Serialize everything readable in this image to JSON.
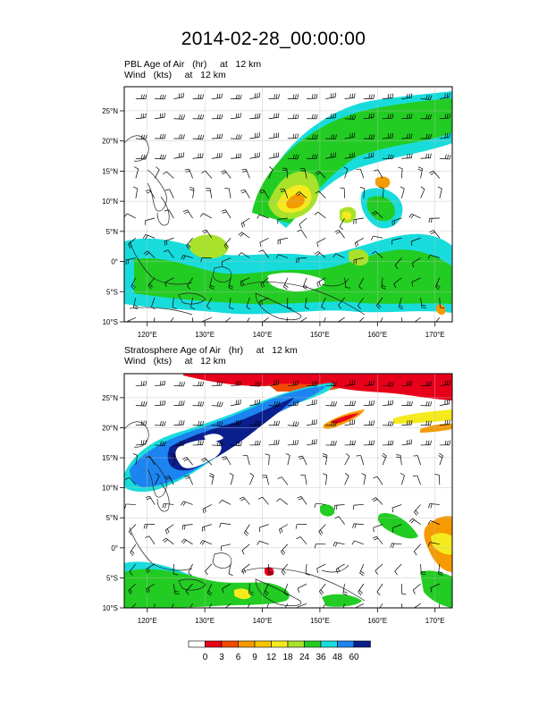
{
  "title": "2014-02-28_00:00:00",
  "panels": [
    {
      "id": "pbl",
      "title_lines": [
        "PBL Age of Air   (hr)     at   12 km",
        "Wind   (kts)     at   12 km"
      ],
      "field": "PBL Age of Air",
      "units": "hr",
      "level": "12 km"
    },
    {
      "id": "strat",
      "title_lines": [
        "Stratosphere Age of Air   (hr)     at   12 km",
        "Wind   (kts)     at   12 km"
      ],
      "field": "Stratosphere Age of Air",
      "units": "hr",
      "level": "12 km"
    }
  ],
  "axes": {
    "lon_ticks": [
      "120°E",
      "130°E",
      "140°E",
      "150°E",
      "160°E",
      "170°E"
    ],
    "lon_values": [
      120,
      130,
      140,
      150,
      160,
      170
    ],
    "lat_ticks": [
      "25°N",
      "20°N",
      "15°N",
      "10°N",
      "5°N",
      "0°",
      "5°S",
      "10°S"
    ],
    "lat_values": [
      25,
      20,
      15,
      10,
      5,
      0,
      -5,
      -10
    ],
    "lon_range": [
      116,
      173
    ],
    "lat_range": [
      -10,
      29
    ]
  },
  "colorbar": {
    "labels": [
      "0",
      "3",
      "6",
      "9",
      "12",
      "18",
      "24",
      "36",
      "48",
      "60"
    ],
    "colors": [
      "#ffffff",
      "#e8001a",
      "#f24a00",
      "#f59a00",
      "#f7c600",
      "#f5ea1e",
      "#a8e22a",
      "#22cc22",
      "#18dcdc",
      "#1c84f0",
      "#0a1e8c"
    ]
  }
}
